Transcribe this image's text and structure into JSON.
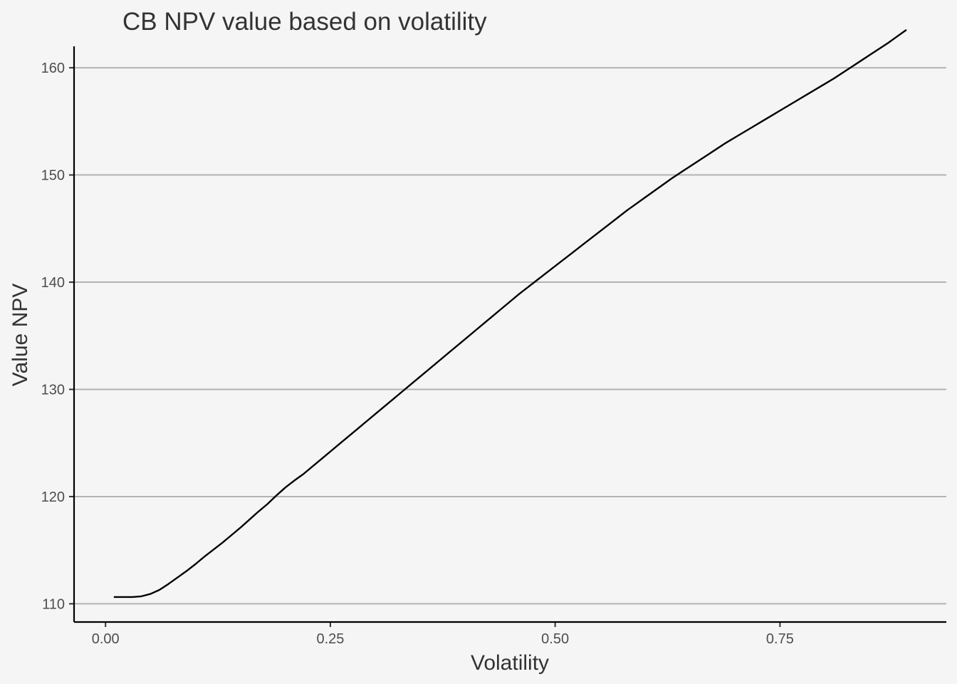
{
  "chart_data": {
    "type": "line",
    "title": "CB NPV value based on volatility",
    "xlabel": "Volatility",
    "ylabel": "Value NPV",
    "xlim": [
      -0.035,
      0.935
    ],
    "ylim": [
      108.3,
      162.0
    ],
    "x_ticks": [
      0.0,
      0.25,
      0.5,
      0.75
    ],
    "x_tick_labels": [
      "0.00",
      "0.25",
      "0.50",
      "0.75"
    ],
    "y_ticks": [
      110,
      120,
      130,
      140,
      150,
      160
    ],
    "y_tick_labels": [
      "110",
      "120",
      "130",
      "140",
      "150",
      "160"
    ],
    "grid": "horizontal-major",
    "legend": "none",
    "line_color": "#000000",
    "series": [
      {
        "x": [
          0.01,
          0.02,
          0.03,
          0.04,
          0.05,
          0.06,
          0.07,
          0.08,
          0.09,
          0.1,
          0.11,
          0.12,
          0.13,
          0.14,
          0.15,
          0.16,
          0.17,
          0.18,
          0.19,
          0.2,
          0.21,
          0.22,
          0.23,
          0.24,
          0.25,
          0.26,
          0.27,
          0.28,
          0.29,
          0.3,
          0.31,
          0.32,
          0.33,
          0.34,
          0.35,
          0.36,
          0.37,
          0.38,
          0.39,
          0.4,
          0.41,
          0.42,
          0.43,
          0.44,
          0.45,
          0.46,
          0.47,
          0.48,
          0.49,
          0.5,
          0.51,
          0.52,
          0.53,
          0.54,
          0.55,
          0.56,
          0.57,
          0.58,
          0.59,
          0.6,
          0.61,
          0.62,
          0.63,
          0.64,
          0.65,
          0.66,
          0.67,
          0.68,
          0.69,
          0.7,
          0.71,
          0.72,
          0.73,
          0.74,
          0.75,
          0.76,
          0.77,
          0.78,
          0.79,
          0.8,
          0.81,
          0.82,
          0.83,
          0.84,
          0.85,
          0.86,
          0.87,
          0.88,
          0.89
        ],
        "values": [
          110.63,
          110.63,
          110.63,
          110.7,
          110.92,
          111.3,
          111.85,
          112.45,
          113.05,
          113.7,
          114.4,
          115.05,
          115.7,
          116.4,
          117.1,
          117.85,
          118.6,
          119.3,
          120.1,
          120.85,
          121.5,
          122.1,
          122.8,
          123.5,
          124.2,
          124.9,
          125.6,
          126.3,
          127.0,
          127.7,
          128.4,
          129.1,
          129.8,
          130.5,
          131.2,
          131.9,
          132.6,
          133.3,
          134.0,
          134.7,
          135.4,
          136.1,
          136.8,
          137.5,
          138.2,
          138.9,
          139.55,
          140.2,
          140.85,
          141.5,
          142.15,
          142.8,
          143.45,
          144.1,
          144.75,
          145.4,
          146.05,
          146.7,
          147.3,
          147.9,
          148.5,
          149.1,
          149.7,
          150.25,
          150.8,
          151.35,
          151.9,
          152.45,
          153.0,
          153.5,
          154.0,
          154.5,
          155.0,
          155.5,
          156.0,
          156.5,
          157.0,
          157.5,
          158.0,
          158.5,
          159.0,
          159.55,
          160.1,
          160.65,
          161.2,
          161.75,
          162.3,
          162.9,
          163.5
        ]
      }
    ]
  }
}
